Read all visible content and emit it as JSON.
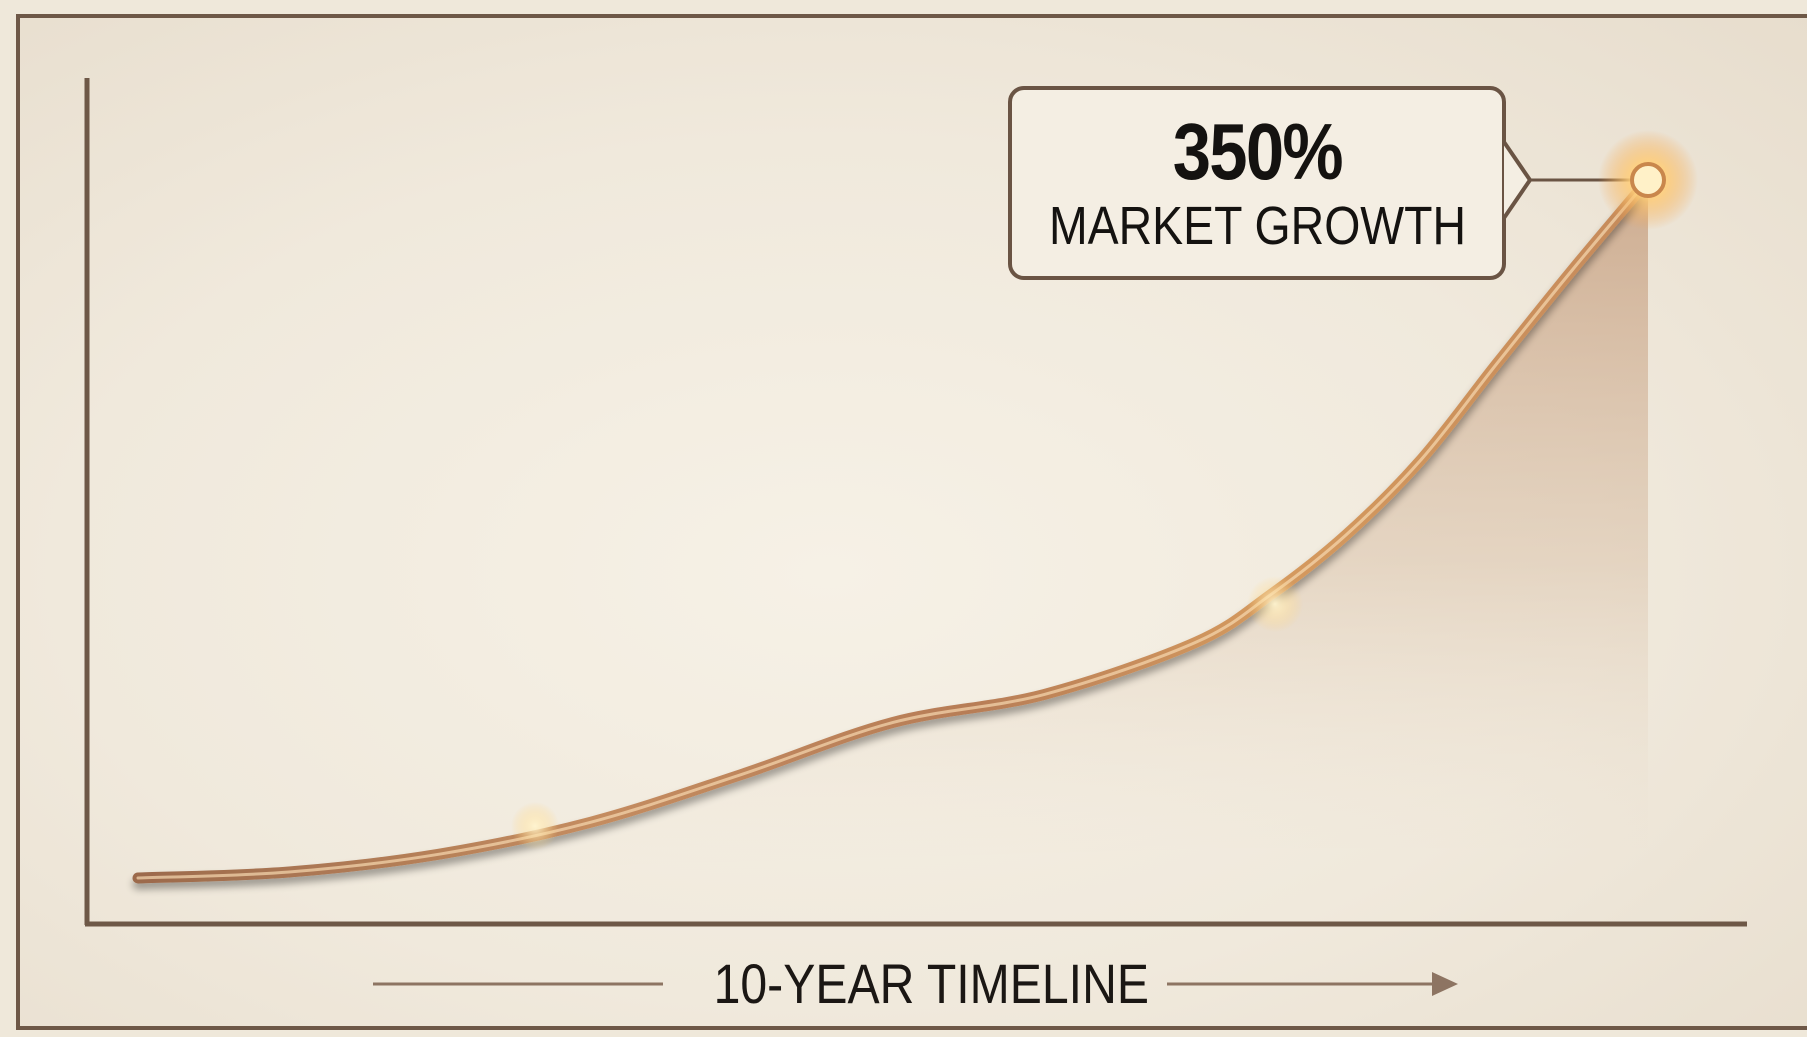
{
  "chart_data": {
    "type": "line",
    "title": "",
    "xlabel": "10-YEAR TIMELINE",
    "ylabel": "",
    "xlim": [
      0,
      10
    ],
    "ylim": [
      0,
      400
    ],
    "grid": false,
    "series": [
      {
        "x": [
          0,
          1,
          2,
          3,
          4,
          5,
          6,
          7,
          7.5,
          8,
          8.5,
          9,
          9.5,
          10
        ],
        "values": [
          0,
          3,
          12,
          28,
          52,
          78,
          92,
          118,
          142,
          172,
          210,
          258,
          305,
          350
        ]
      }
    ],
    "annotations": [
      {
        "x": 10,
        "y": 350,
        "value": "350%",
        "label": "MARKET GROWTH"
      }
    ],
    "colors": {
      "line": "#b9825a",
      "glow": "#ffd88a",
      "area": "#c9a58a",
      "axis": "#6e5847",
      "background": "#f2ebde"
    }
  }
}
